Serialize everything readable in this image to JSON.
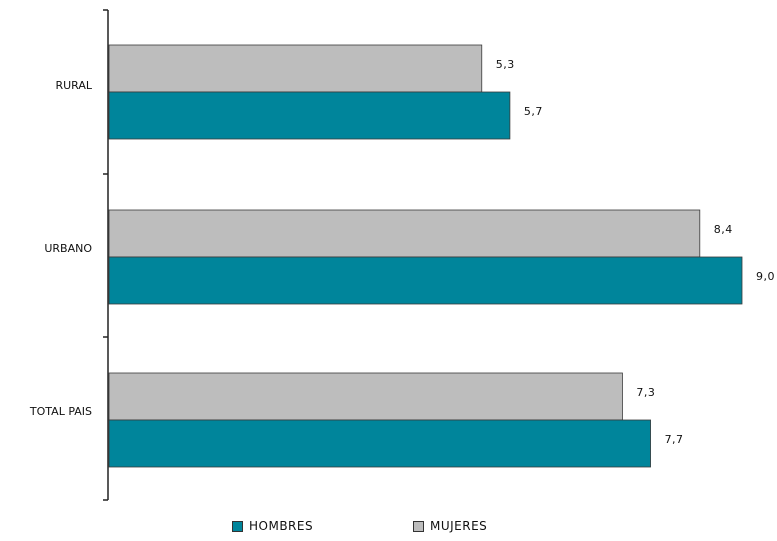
{
  "chart_data": {
    "type": "bar",
    "orientation": "horizontal",
    "categories": [
      "RURAL",
      "URBANO",
      "TOTAL PAIS"
    ],
    "series": [
      {
        "name": "MUJERES",
        "values": [
          5.3,
          8.4,
          7.3
        ],
        "labels": [
          "5,3",
          "8,4",
          "7,3"
        ],
        "color": "#bdbdbd"
      },
      {
        "name": "HOMBRES",
        "values": [
          5.7,
          9.0,
          7.7
        ],
        "labels": [
          "5,7",
          "9,0",
          "7,7"
        ],
        "color": "#00859b"
      }
    ],
    "xlim": [
      0,
      9.0
    ],
    "grid": false,
    "legend_position": "bottom"
  },
  "legend": {
    "hombres": "HOMBRES",
    "mujeres": "MUJERES",
    "hombres_color": "#00859b",
    "mujeres_color": "#bdbdbd"
  }
}
